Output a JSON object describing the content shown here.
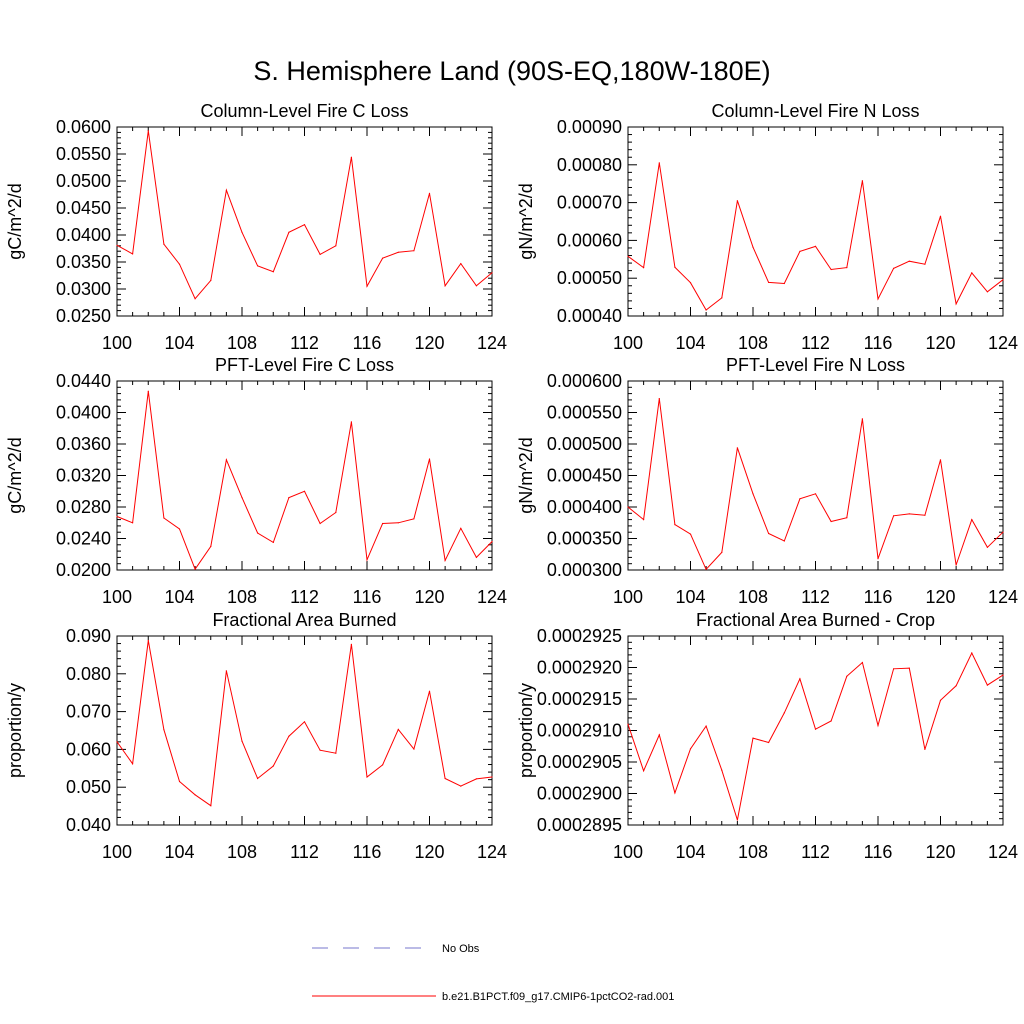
{
  "page_title": "S. Hemisphere Land (90S-EQ,180W-180E)",
  "legend": {
    "placement": "bottom",
    "entries": [
      {
        "label": "No Obs",
        "color": "#7777cc",
        "style": "dashed"
      },
      {
        "label": "b.e21.B1PCT.f09_g17.CMIP6-1pctCO2-rad.001",
        "color": "#ff0000",
        "style": "solid"
      }
    ]
  },
  "chart_data": [
    {
      "type": "line",
      "title": "Column-Level Fire C Loss",
      "ylabel": "gC/m^2/d",
      "xlabel": "",
      "xlim": [
        100,
        124
      ],
      "ylim": [
        0.025,
        0.06
      ],
      "x_ticks": [
        "100",
        "104",
        "108",
        "112",
        "116",
        "120",
        "124"
      ],
      "y_ticks": [
        "0.0250",
        "0.0300",
        "0.0350",
        "0.0400",
        "0.0450",
        "0.0500",
        "0.0550",
        "0.0600"
      ],
      "grid": false,
      "color": "#ff0000",
      "x": [
        100,
        101,
        102,
        103,
        104,
        105,
        106,
        107,
        108,
        109,
        110,
        111,
        112,
        113,
        114,
        115,
        116,
        117,
        118,
        119,
        120,
        121,
        122,
        123,
        124
      ],
      "values": [
        0.0381,
        0.0365,
        0.0593,
        0.0383,
        0.0346,
        0.0282,
        0.0316,
        0.0483,
        0.0405,
        0.0343,
        0.0332,
        0.0405,
        0.0419,
        0.0364,
        0.038,
        0.0544,
        0.0305,
        0.0357,
        0.0368,
        0.0371,
        0.0477,
        0.0306,
        0.0347,
        0.0306,
        0.033
      ]
    },
    {
      "type": "line",
      "title": "Column-Level Fire N Loss",
      "ylabel": "gN/m^2/d",
      "xlabel": "",
      "xlim": [
        100,
        124
      ],
      "ylim": [
        0.0004,
        0.0009
      ],
      "x_ticks": [
        "100",
        "104",
        "108",
        "112",
        "116",
        "120",
        "124"
      ],
      "y_ticks": [
        "0.00040",
        "0.00050",
        "0.00060",
        "0.00070",
        "0.00080",
        "0.00090"
      ],
      "grid": false,
      "color": "#ff0000",
      "x": [
        100,
        101,
        102,
        103,
        104,
        105,
        106,
        107,
        108,
        109,
        110,
        111,
        112,
        113,
        114,
        115,
        116,
        117,
        118,
        119,
        120,
        121,
        122,
        123,
        124
      ],
      "values": [
        0.000558,
        0.000528,
        0.000805,
        0.000529,
        0.000488,
        0.000416,
        0.000448,
        0.000705,
        0.000582,
        0.000489,
        0.000486,
        0.000571,
        0.000584,
        0.000523,
        0.000528,
        0.000758,
        0.000445,
        0.000526,
        0.000545,
        0.000537,
        0.000664,
        0.000432,
        0.000514,
        0.000464,
        0.000496
      ]
    },
    {
      "type": "line",
      "title": "PFT-Level Fire C Loss",
      "ylabel": "gC/m^2/d",
      "xlabel": "",
      "xlim": [
        100,
        124
      ],
      "ylim": [
        0.02,
        0.044
      ],
      "x_ticks": [
        "100",
        "104",
        "108",
        "112",
        "116",
        "120",
        "124"
      ],
      "y_ticks": [
        "0.0200",
        "0.0240",
        "0.0280",
        "0.0320",
        "0.0360",
        "0.0400",
        "0.0440"
      ],
      "grid": false,
      "color": "#ff0000",
      "x": [
        100,
        101,
        102,
        103,
        104,
        105,
        106,
        107,
        108,
        109,
        110,
        111,
        112,
        113,
        114,
        115,
        116,
        117,
        118,
        119,
        120,
        121,
        122,
        123,
        124
      ],
      "values": [
        0.0268,
        0.026,
        0.0427,
        0.0266,
        0.0252,
        0.0201,
        0.023,
        0.034,
        0.0292,
        0.0247,
        0.0235,
        0.0292,
        0.03,
        0.0259,
        0.0273,
        0.0388,
        0.0213,
        0.0259,
        0.026,
        0.0265,
        0.0341,
        0.0212,
        0.0253,
        0.0216,
        0.0236
      ]
    },
    {
      "type": "line",
      "title": "PFT-Level Fire N Loss",
      "ylabel": "gN/m^2/d",
      "xlabel": "",
      "xlim": [
        100,
        124
      ],
      "ylim": [
        0.0003,
        0.0006
      ],
      "x_ticks": [
        "100",
        "104",
        "108",
        "112",
        "116",
        "120",
        "124"
      ],
      "y_ticks": [
        "0.000300",
        "0.000350",
        "0.000400",
        "0.000450",
        "0.000500",
        "0.000550",
        "0.000600"
      ],
      "grid": false,
      "color": "#ff0000",
      "x": [
        100,
        101,
        102,
        103,
        104,
        105,
        106,
        107,
        108,
        109,
        110,
        111,
        112,
        113,
        114,
        115,
        116,
        117,
        118,
        119,
        120,
        121,
        122,
        123,
        124
      ],
      "values": [
        0.0004,
        0.00038,
        0.000572,
        0.000372,
        0.000357,
        0.000301,
        0.000328,
        0.000494,
        0.000421,
        0.000358,
        0.000346,
        0.000413,
        0.000421,
        0.000377,
        0.000383,
        0.00054,
        0.000318,
        0.000386,
        0.000389,
        0.000387,
        0.000475,
        0.000308,
        0.00038,
        0.000336,
        0.00036
      ]
    },
    {
      "type": "line",
      "title": "Fractional Area Burned",
      "ylabel": "proportion/y",
      "xlabel": "",
      "xlim": [
        100,
        124
      ],
      "ylim": [
        0.04,
        0.09
      ],
      "x_ticks": [
        "100",
        "104",
        "108",
        "112",
        "116",
        "120",
        "124"
      ],
      "y_ticks": [
        "0.040",
        "0.050",
        "0.060",
        "0.070",
        "0.080",
        "0.090"
      ],
      "grid": false,
      "color": "#ff0000",
      "x": [
        100,
        101,
        102,
        103,
        104,
        105,
        106,
        107,
        108,
        109,
        110,
        111,
        112,
        113,
        114,
        115,
        116,
        117,
        118,
        119,
        120,
        121,
        122,
        123,
        124
      ],
      "values": [
        0.062,
        0.0562,
        0.0888,
        0.0652,
        0.0515,
        0.048,
        0.0451,
        0.0808,
        0.0622,
        0.0523,
        0.0556,
        0.0635,
        0.0673,
        0.0598,
        0.059,
        0.0878,
        0.0527,
        0.0559,
        0.0653,
        0.0601,
        0.0754,
        0.0523,
        0.0503,
        0.0522,
        0.0527
      ]
    },
    {
      "type": "line",
      "title": "Fractional Area Burned - Crop",
      "ylabel": "proportion/y",
      "xlabel": "",
      "xlim": [
        100,
        124
      ],
      "ylim": [
        0.0002895,
        0.0002925
      ],
      "x_ticks": [
        "100",
        "104",
        "108",
        "112",
        "116",
        "120",
        "124"
      ],
      "y_ticks": [
        "0.0002895",
        "0.0002900",
        "0.0002905",
        "0.0002910",
        "0.0002915",
        "0.0002920",
        "0.0002925"
      ],
      "grid": false,
      "color": "#ff0000",
      "x": [
        100,
        101,
        102,
        103,
        104,
        105,
        106,
        107,
        108,
        109,
        110,
        111,
        112,
        113,
        114,
        115,
        116,
        117,
        118,
        119,
        120,
        121,
        122,
        123,
        124
      ],
      "values": [
        0.0002911,
        0.00029036,
        0.00029093,
        0.00029001,
        0.00029071,
        0.00029107,
        0.00029037,
        0.00028958,
        0.00029088,
        0.00029081,
        0.00029128,
        0.00029182,
        0.00029102,
        0.00029115,
        0.00029186,
        0.00029208,
        0.00029108,
        0.00029198,
        0.00029199,
        0.0002907,
        0.00029148,
        0.00029171,
        0.00029223,
        0.00029172,
        0.00029188
      ]
    }
  ]
}
